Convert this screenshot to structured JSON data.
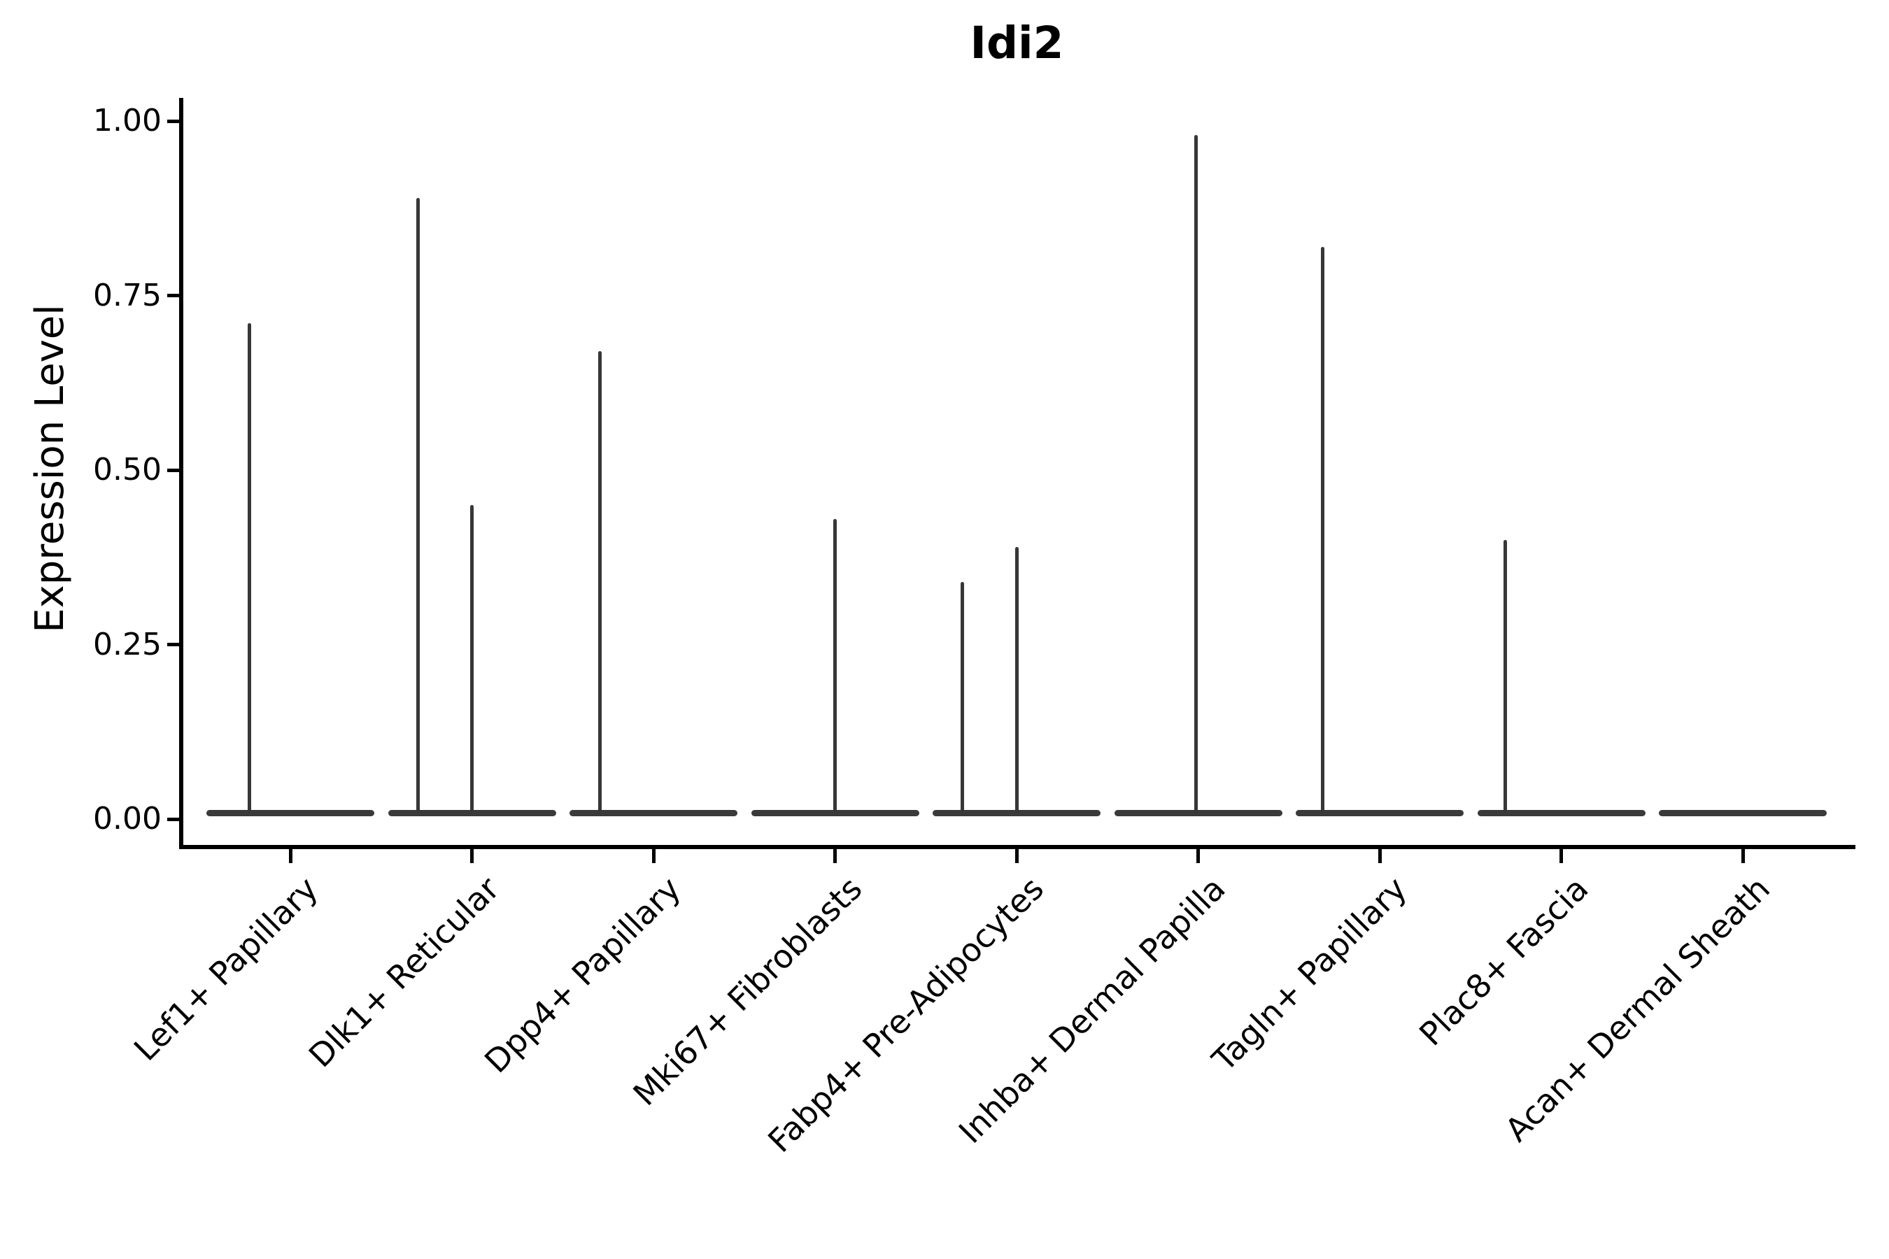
{
  "chart_data": {
    "type": "violin",
    "title": "Idi2",
    "xlabel": "",
    "ylabel": "Expression Level",
    "ylim": [
      0,
      1.0
    ],
    "yticks": [
      0.0,
      0.25,
      0.5,
      0.75,
      1.0
    ],
    "grid": false,
    "legend": "none",
    "categories": [
      "Lef1+ Papillary",
      "Dlk1+ Reticular",
      "Dpp4+ Papillary",
      "Mki67+ Fibroblasts",
      "Fabp4+ Pre-Adipocytes",
      "Inhba+ Dermal Papilla",
      "Tagln+ Papillary",
      "Plac8+ Fascia",
      "Acan+ Dermal Sheath"
    ],
    "series": [
      {
        "name": "Lef1+ Papillary",
        "baseline_value": 0.0,
        "spikes": [
          {
            "value": 0.71,
            "x_offset": -59
          }
        ]
      },
      {
        "name": "Dlk1+ Reticular",
        "baseline_value": 0.0,
        "spikes": [
          {
            "value": 0.89,
            "x_offset": -77
          },
          {
            "value": 0.45,
            "x_offset": 0
          }
        ]
      },
      {
        "name": "Dpp4+ Papillary",
        "baseline_value": 0.0,
        "spikes": [
          {
            "value": 0.67,
            "x_offset": -77
          }
        ]
      },
      {
        "name": "Mki67+ Fibroblasts",
        "baseline_value": 0.0,
        "spikes": [
          {
            "value": 0.43,
            "x_offset": 0
          }
        ]
      },
      {
        "name": "Fabp4+ Pre-Adipocytes",
        "baseline_value": 0.0,
        "spikes": [
          {
            "value": 0.34,
            "x_offset": -78
          },
          {
            "value": 0.39,
            "x_offset": 0
          }
        ]
      },
      {
        "name": "Inhba+ Dermal Papilla",
        "baseline_value": 0.0,
        "spikes": [
          {
            "value": 0.98,
            "x_offset": -3
          }
        ]
      },
      {
        "name": "Tagln+ Papillary",
        "baseline_value": 0.0,
        "spikes": [
          {
            "value": 0.82,
            "x_offset": -82
          }
        ]
      },
      {
        "name": "Plac8+ Fascia",
        "baseline_value": 0.0,
        "spikes": [
          {
            "value": 0.4,
            "x_offset": -80
          }
        ]
      },
      {
        "name": "Acan+ Dermal Sheath",
        "baseline_value": 0.0,
        "spikes": []
      }
    ]
  }
}
